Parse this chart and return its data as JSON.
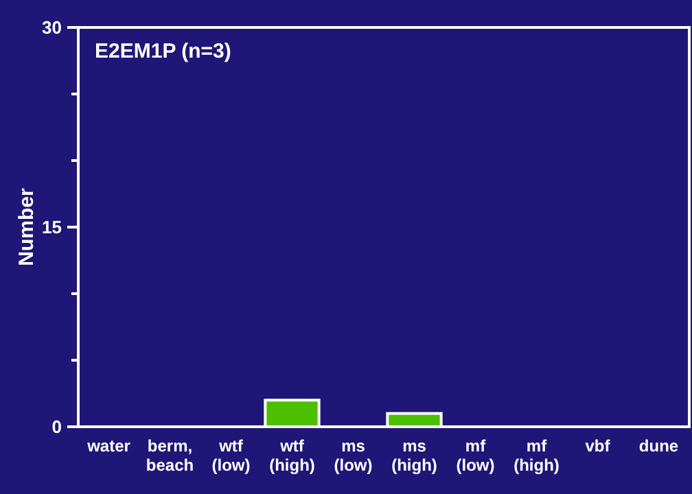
{
  "chart_data": {
    "type": "bar",
    "title": "E2EM1P (n=3)",
    "ylabel": "Number",
    "categories": [
      "water",
      "berm, beach",
      "wtf (low)",
      "wtf (high)",
      "ms (low)",
      "ms (high)",
      "mf (low)",
      "mf (high)",
      "vbf",
      "dune"
    ],
    "values": [
      0,
      0,
      0,
      2,
      0,
      1,
      0,
      0,
      0,
      0
    ],
    "color": "#4cc000",
    "ylim": [
      0,
      30
    ],
    "yticks": [
      0,
      {
        "value": 5,
        "label": null
      },
      {
        "value": 10,
        "label": null
      },
      15,
      {
        "value": 20,
        "label": null
      },
      {
        "value": 25,
        "label": null
      },
      30
    ],
    "grid": false
  }
}
